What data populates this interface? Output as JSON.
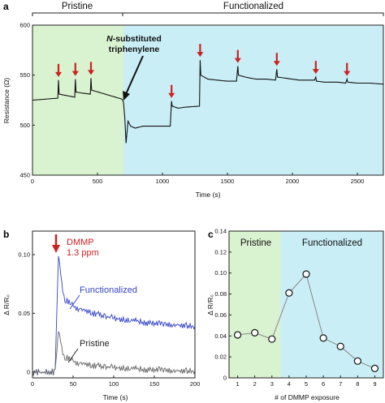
{
  "chart_data": [
    {
      "panel": "a",
      "type": "line",
      "xlabel": "Time (s)",
      "ylabel": "Resistance (Ω)",
      "xlim": [
        0,
        2700
      ],
      "ylim": [
        450,
        600
      ],
      "xticks": [
        0,
        500,
        1000,
        1500,
        2000,
        2500
      ],
      "yticks": [
        450,
        500,
        550,
        600
      ],
      "regions": [
        {
          "label": "Pristine",
          "x": [
            0,
            700
          ],
          "color": "#d9f2cf"
        },
        {
          "label": "Functionalized",
          "x": [
            700,
            2700
          ],
          "color": "#c9eef5"
        }
      ],
      "annotation": {
        "bold_prefix": "N",
        "text": "-substituted",
        "line2": "triphenylene",
        "x": 700,
        "y": 525
      },
      "arrow_times": [
        200,
        330,
        450,
        1070,
        1290,
        1580,
        1880,
        2180,
        2420
      ],
      "series": [
        {
          "color": "#111111",
          "x": [
            0,
            195,
            200,
            205,
            325,
            330,
            335,
            445,
            450,
            455,
            690,
            700,
            710,
            720,
            735,
            755,
            790,
            850,
            950,
            1060,
            1070,
            1075,
            1120,
            1180,
            1285,
            1290,
            1295,
            1350,
            1420,
            1500,
            1570,
            1580,
            1585,
            1640,
            1720,
            1800,
            1870,
            1880,
            1885,
            1950,
            2050,
            2170,
            2180,
            2185,
            2250,
            2350,
            2410,
            2420,
            2425,
            2500,
            2600,
            2700
          ],
          "y": [
            525,
            527,
            545,
            531,
            528,
            546,
            533,
            531,
            547,
            535,
            526,
            523,
            508,
            482,
            504,
            499,
            497,
            499,
            499,
            499,
            524,
            519,
            517,
            518,
            519,
            565,
            550,
            546,
            545,
            544,
            544,
            559,
            550,
            548,
            546,
            546,
            545,
            556,
            548,
            547,
            545,
            545,
            548,
            544,
            543,
            543,
            542,
            546,
            543,
            542,
            542,
            541
          ]
        }
      ]
    },
    {
      "panel": "b",
      "type": "line",
      "xlabel": "Time (s)",
      "ylabel": "Δ R/R₀",
      "xlim": [
        0,
        200
      ],
      "ylim": [
        -0.005,
        0.12
      ],
      "xticks": [
        0,
        50,
        100,
        150,
        200
      ],
      "yticks": [
        0,
        0.05,
        0.1
      ],
      "arrow_label": "DMMP",
      "arrow_label2": "1.3 ppm",
      "arrow_x": 30,
      "series": [
        {
          "name": "Functionalized",
          "color": "#3344cc",
          "x": [
            0,
            28,
            30,
            32,
            36,
            40,
            50,
            60,
            80,
            100,
            120,
            140,
            160,
            180,
            200
          ],
          "y": [
            0,
            0,
            0.055,
            0.1,
            0.075,
            0.062,
            0.056,
            0.053,
            0.049,
            0.046,
            0.044,
            0.042,
            0.041,
            0.04,
            0.039
          ]
        },
        {
          "name": "Pristine",
          "color": "#666666",
          "x": [
            0,
            28,
            30,
            32,
            36,
            40,
            50,
            60,
            80,
            100,
            120,
            140,
            160,
            180,
            200
          ],
          "y": [
            0,
            0,
            0.02,
            0.036,
            0.02,
            0.013,
            0.009,
            0.007,
            0.005,
            0.004,
            0.003,
            0.002,
            0.002,
            0.001,
            0.001
          ]
        }
      ]
    },
    {
      "panel": "c",
      "type": "scatter",
      "xlabel": "# of DMMP exposure",
      "ylabel": "Δ R/R₀",
      "xlim": [
        0.5,
        9.5
      ],
      "ylim": [
        0,
        0.14
      ],
      "xticks": [
        1,
        2,
        3,
        4,
        5,
        6,
        7,
        8,
        9
      ],
      "yticks": [
        0,
        0.02,
        0.04,
        0.06,
        0.08,
        0.1,
        0.12,
        0.14
      ],
      "regions": [
        {
          "label": "Pristine",
          "x": [
            0.5,
            3.5
          ],
          "color": "#d9f2cf"
        },
        {
          "label": "Functionalized",
          "x": [
            3.5,
            9.5
          ],
          "color": "#c9eef5"
        }
      ],
      "series": [
        {
          "x": [
            1,
            2,
            3,
            4,
            5,
            6,
            7,
            8,
            9
          ],
          "y": [
            0.041,
            0.043,
            0.037,
            0.081,
            0.099,
            0.038,
            0.03,
            0.016,
            0.009
          ],
          "color": "#888888"
        }
      ]
    }
  ]
}
